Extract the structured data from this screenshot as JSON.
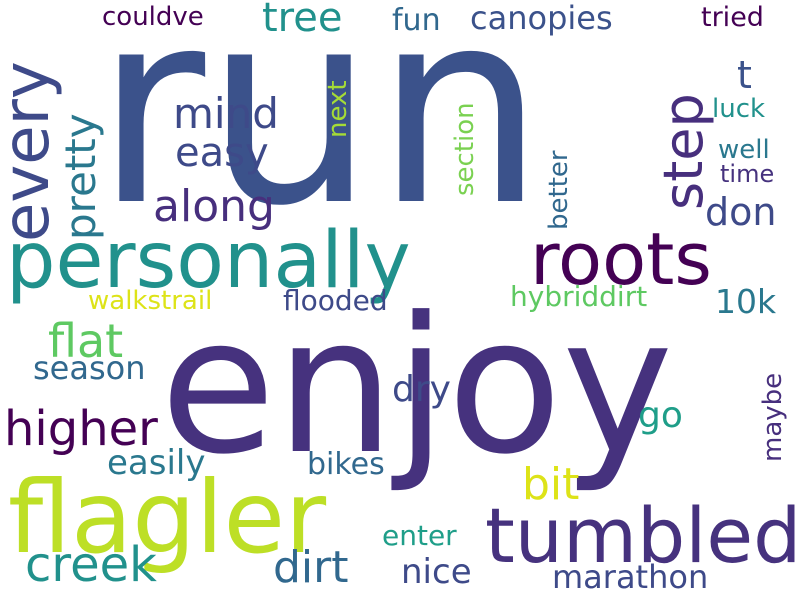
{
  "words": {
    "run": "run",
    "enjoy": "enjoy",
    "flagler": "flagler",
    "tumbled": "tumbled",
    "personally": "personally",
    "roots": "roots",
    "every": "every",
    "step": "step",
    "pretty": "pretty",
    "tree": "tree",
    "couldve": "couldve",
    "fun": "fun",
    "canopies": "canopies",
    "tried": "tried",
    "mind": "mind",
    "easy": "easy",
    "along": "along",
    "next": "next",
    "section": "section",
    "t": "t",
    "luck": "luck",
    "well": "well",
    "time": "time",
    "don": "don",
    "better": "better",
    "walkstrail": "walkstrail",
    "flooded": "flooded",
    "hybriddirt": "hybriddirt",
    "10k": "10k",
    "flat": "flat",
    "season": "season",
    "dry": "dry",
    "higher": "higher",
    "go": "go",
    "maybe": "maybe",
    "easily": "easily",
    "bikes": "bikes",
    "bit": "bit",
    "creek": "creek",
    "dirt": "dirt",
    "enter": "enter",
    "nice": "nice",
    "marathon": "marathon"
  },
  "colors": {
    "run": "#3b528b",
    "enjoy": "#46327e",
    "flagler": "#bddf26",
    "tumbled": "#46327e",
    "personally": "#21918c",
    "roots": "#440154",
    "every": "#3e4a89",
    "step": "#472f7d",
    "pretty": "#2a788e",
    "tree": "#21918c",
    "couldve": "#440154",
    "fun": "#31688e",
    "canopies": "#3b528b",
    "tried": "#440154",
    "mind": "#3e4a89",
    "easy": "#3e4a89",
    "along": "#472f7d",
    "next": "#a5db36",
    "section": "#7ad151",
    "t": "#3b528b",
    "luck": "#21918c",
    "well": "#2a788e",
    "time": "#46327e",
    "don": "#3e4a89",
    "better": "#31688e",
    "walkstrail": "#dde318",
    "flooded": "#3e4a89",
    "hybriddirt": "#5ec962",
    "10k": "#2a788e",
    "flat": "#5ec962",
    "season": "#31688e",
    "dry": "#3e4a89",
    "higher": "#440154",
    "go": "#1f9e89",
    "maybe": "#472f7d",
    "easily": "#2a788e",
    "bikes": "#31688e",
    "bit": "#dde318",
    "creek": "#21918c",
    "dirt": "#31688e",
    "enter": "#1f9e89",
    "nice": "#3e4a89",
    "marathon": "#3e4a89"
  }
}
